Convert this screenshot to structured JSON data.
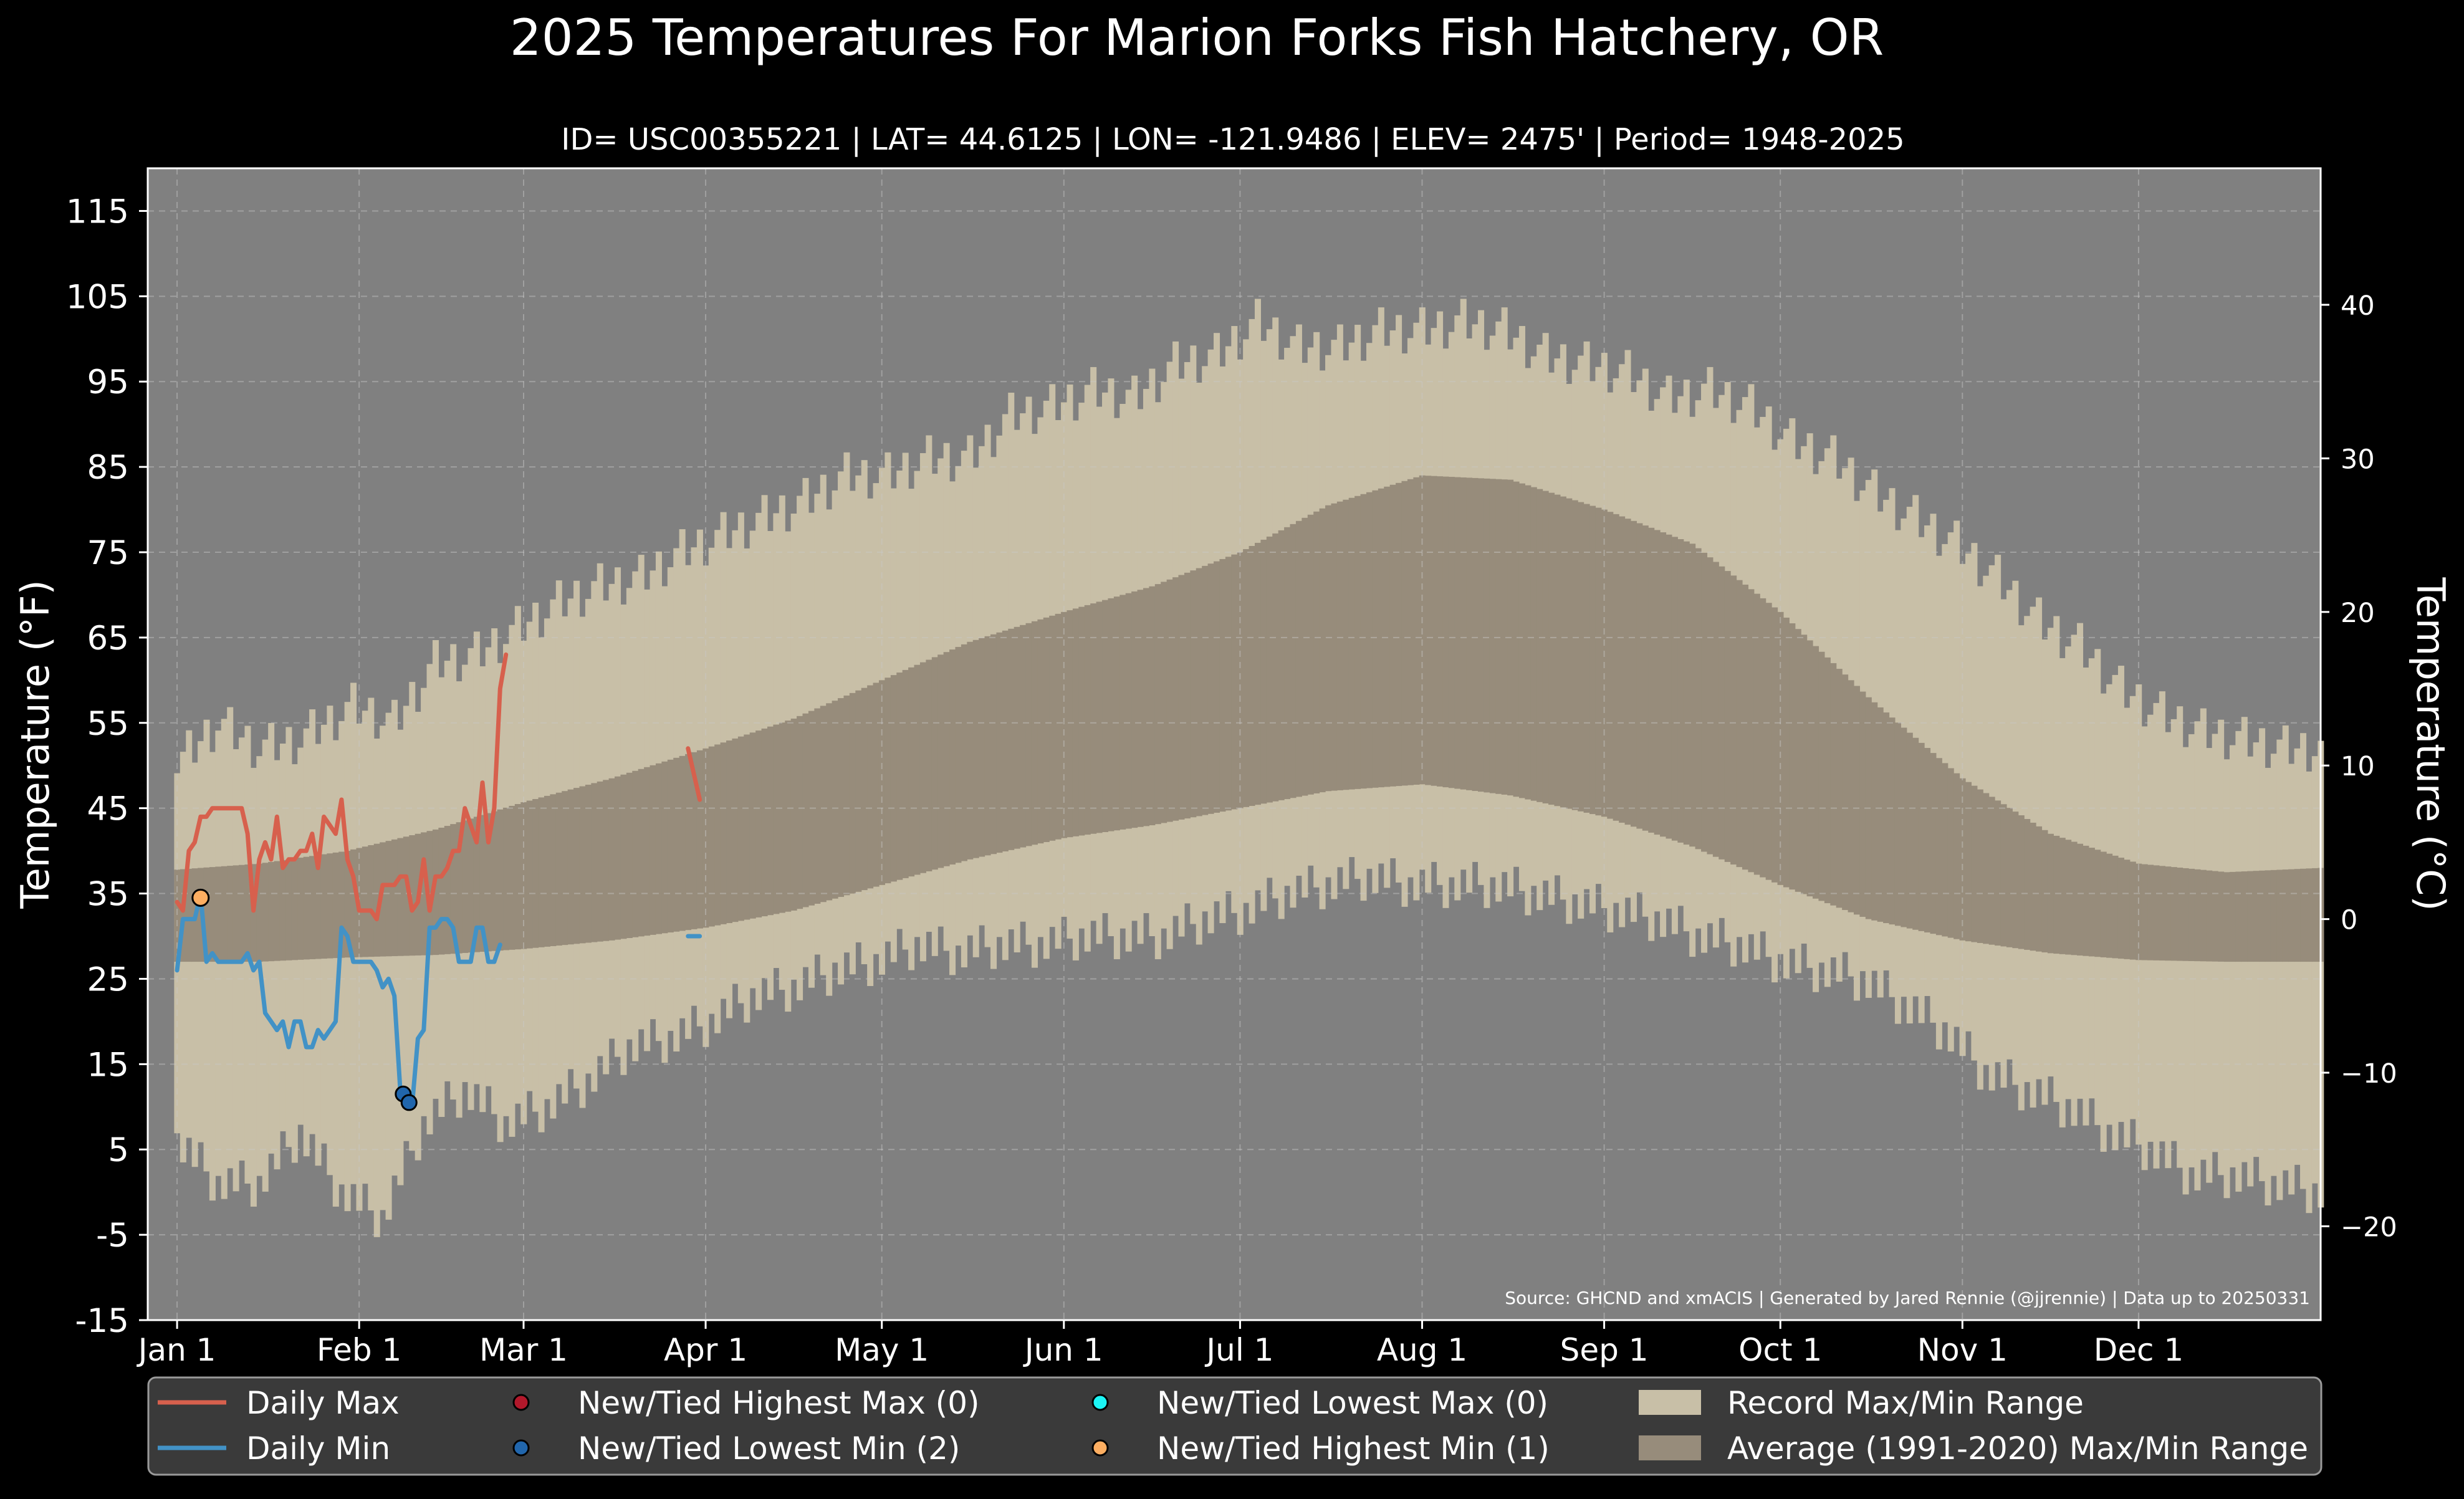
{
  "chart_data": {
    "type": "line",
    "title": "2025 Temperatures For Marion Forks Fish Hatchery, OR",
    "subtitle": "ID= USC00355221 | LAT= 44.6125 | LON= -121.9486 | ELEV= 2475' | Period= 1948-2025",
    "ylabel_left": "Temperature ($^\\circ$F)",
    "ylabel_left_display": "Temperature (°F)",
    "ylabel_right_display": "Temperature (°C)",
    "source_note": "Source: GHCND and xmACIS | Generated by Jared Rennie (@jjrennie) | Data up to 20250331",
    "x_ticks": [
      "Jan 1",
      "Feb 1",
      "Mar 1",
      "Apr 1",
      "May 1",
      "Jun 1",
      "Jul 1",
      "Aug 1",
      "Sep 1",
      "Oct 1",
      "Nov 1",
      "Dec 1"
    ],
    "x_tick_days": [
      1,
      32,
      60,
      91,
      121,
      152,
      182,
      213,
      244,
      274,
      305,
      335
    ],
    "y_ticks_f": [
      115,
      105,
      95,
      85,
      75,
      65,
      55,
      45,
      35,
      25,
      15,
      5,
      -5,
      -15
    ],
    "y_ticks_c": [
      40,
      30,
      20,
      10,
      0,
      -10,
      -20
    ],
    "ylim_f": [
      -15,
      120
    ],
    "xlim_days": [
      -4,
      366
    ],
    "grid": true,
    "colors": {
      "background": "#000000",
      "plot_bg": "#808080",
      "record_range": "#c8bfa7",
      "normal_range": "#978c7b",
      "daily_max": "#d7604d",
      "daily_min": "#4292c6",
      "new_high_max": "#b2182b",
      "new_low_min": "#2166ac",
      "new_low_max": "#1cf5f5",
      "new_high_min": "#fdae61",
      "grid": "#c8c8c8",
      "legend_bg": "#3a3a3a"
    },
    "record_max_points": [
      [
        1,
        50
      ],
      [
        8,
        55
      ],
      [
        15,
        52
      ],
      [
        22,
        53
      ],
      [
        31,
        57
      ],
      [
        38,
        55
      ],
      [
        45,
        62
      ],
      [
        52,
        63
      ],
      [
        59,
        66
      ],
      [
        66,
        69
      ],
      [
        73,
        71
      ],
      [
        80,
        72
      ],
      [
        87,
        75
      ],
      [
        94,
        77
      ],
      [
        101,
        79
      ],
      [
        108,
        81
      ],
      [
        115,
        84
      ],
      [
        122,
        84
      ],
      [
        129,
        86
      ],
      [
        136,
        86
      ],
      [
        143,
        91
      ],
      [
        150,
        92
      ],
      [
        157,
        94
      ],
      [
        164,
        93
      ],
      [
        171,
        97
      ],
      [
        178,
        98
      ],
      [
        185,
        102
      ],
      [
        192,
        99
      ],
      [
        199,
        99
      ],
      [
        206,
        101
      ],
      [
        213,
        101
      ],
      [
        220,
        102
      ],
      [
        227,
        101
      ],
      [
        234,
        98
      ],
      [
        241,
        97
      ],
      [
        248,
        96
      ],
      [
        255,
        93
      ],
      [
        262,
        94
      ],
      [
        269,
        92
      ],
      [
        276,
        88
      ],
      [
        283,
        86
      ],
      [
        290,
        82
      ],
      [
        297,
        79
      ],
      [
        304,
        76
      ],
      [
        311,
        72
      ],
      [
        318,
        67
      ],
      [
        325,
        64
      ],
      [
        332,
        59
      ],
      [
        339,
        56
      ],
      [
        346,
        54
      ],
      [
        353,
        53
      ],
      [
        360,
        52
      ],
      [
        366,
        52
      ]
    ],
    "record_min_points": [
      [
        1,
        6
      ],
      [
        8,
        1
      ],
      [
        15,
        1
      ],
      [
        22,
        7
      ],
      [
        29,
        0
      ],
      [
        36,
        -3
      ],
      [
        43,
        8
      ],
      [
        50,
        12
      ],
      [
        57,
        8
      ],
      [
        64,
        10
      ],
      [
        71,
        13
      ],
      [
        78,
        17
      ],
      [
        85,
        18
      ],
      [
        92,
        20
      ],
      [
        99,
        23
      ],
      [
        106,
        24
      ],
      [
        113,
        26
      ],
      [
        120,
        27
      ],
      [
        127,
        29
      ],
      [
        134,
        28
      ],
      [
        141,
        29
      ],
      [
        148,
        29
      ],
      [
        155,
        30
      ],
      [
        162,
        30
      ],
      [
        169,
        30
      ],
      [
        176,
        32
      ],
      [
        183,
        33
      ],
      [
        190,
        35
      ],
      [
        197,
        36
      ],
      [
        204,
        37
      ],
      [
        211,
        36
      ],
      [
        218,
        36
      ],
      [
        225,
        36
      ],
      [
        232,
        35
      ],
      [
        239,
        34
      ],
      [
        246,
        33
      ],
      [
        253,
        32
      ],
      [
        260,
        30
      ],
      [
        267,
        29
      ],
      [
        274,
        27
      ],
      [
        281,
        26
      ],
      [
        288,
        25
      ],
      [
        295,
        22
      ],
      [
        302,
        19
      ],
      [
        309,
        14
      ],
      [
        316,
        12
      ],
      [
        323,
        10
      ],
      [
        330,
        7
      ],
      [
        337,
        5
      ],
      [
        344,
        2
      ],
      [
        351,
        2
      ],
      [
        358,
        1
      ],
      [
        366,
        0
      ]
    ],
    "normal_max_points": [
      [
        1,
        37.8
      ],
      [
        15,
        38.5
      ],
      [
        30,
        40
      ],
      [
        45,
        42.5
      ],
      [
        60,
        45.7
      ],
      [
        75,
        48.5
      ],
      [
        91,
        52
      ],
      [
        106,
        55.5
      ],
      [
        121,
        60
      ],
      [
        136,
        64.5
      ],
      [
        152,
        68
      ],
      [
        167,
        71
      ],
      [
        182,
        75
      ],
      [
        197,
        80.5
      ],
      [
        213,
        84
      ],
      [
        228,
        83.5
      ],
      [
        244,
        80
      ],
      [
        259,
        76
      ],
      [
        274,
        68
      ],
      [
        289,
        58
      ],
      [
        305,
        48.5
      ],
      [
        320,
        42
      ],
      [
        335,
        38.5
      ],
      [
        350,
        37.5
      ],
      [
        366,
        38
      ]
    ],
    "normal_min_points": [
      [
        1,
        27
      ],
      [
        15,
        27
      ],
      [
        30,
        27.5
      ],
      [
        45,
        27.8
      ],
      [
        60,
        28.5
      ],
      [
        75,
        29.5
      ],
      [
        91,
        31
      ],
      [
        106,
        33
      ],
      [
        121,
        36
      ],
      [
        136,
        39
      ],
      [
        152,
        41.5
      ],
      [
        167,
        43
      ],
      [
        182,
        45
      ],
      [
        197,
        47
      ],
      [
        213,
        47.8
      ],
      [
        228,
        46.5
      ],
      [
        244,
        44
      ],
      [
        259,
        40.5
      ],
      [
        274,
        36
      ],
      [
        289,
        32
      ],
      [
        305,
        29.5
      ],
      [
        320,
        28
      ],
      [
        335,
        27.2
      ],
      [
        350,
        27
      ],
      [
        366,
        27
      ]
    ],
    "series": [
      {
        "name": "Daily Max",
        "segments": [
          [
            [
              1,
              34
            ],
            [
              2,
              33
            ],
            [
              3,
              40
            ],
            [
              4,
              41
            ],
            [
              5,
              44
            ],
            [
              6,
              44
            ],
            [
              7,
              45
            ],
            [
              8,
              45
            ],
            [
              9,
              45
            ],
            [
              10,
              45
            ],
            [
              11,
              45
            ],
            [
              12,
              45
            ],
            [
              13,
              42
            ],
            [
              14,
              33
            ],
            [
              15,
              39
            ],
            [
              16,
              41
            ],
            [
              17,
              39
            ],
            [
              18,
              44
            ],
            [
              19,
              38
            ],
            [
              20,
              39
            ],
            [
              21,
              39
            ],
            [
              22,
              40
            ],
            [
              23,
              40
            ],
            [
              24,
              42
            ],
            [
              25,
              38
            ],
            [
              26,
              44
            ],
            [
              27,
              43
            ],
            [
              28,
              42
            ],
            [
              29,
              46
            ],
            [
              30,
              39
            ],
            [
              31,
              37
            ],
            [
              32,
              33
            ],
            [
              33,
              33
            ],
            [
              34,
              33
            ],
            [
              35,
              32
            ],
            [
              36,
              36
            ],
            [
              37,
              36
            ],
            [
              38,
              36
            ],
            [
              39,
              37
            ],
            [
              40,
              37
            ],
            [
              41,
              33
            ],
            [
              42,
              34
            ],
            [
              43,
              39
            ],
            [
              44,
              33
            ],
            [
              45,
              37
            ],
            [
              46,
              37
            ],
            [
              47,
              38
            ],
            [
              48,
              40
            ],
            [
              49,
              40
            ],
            [
              50,
              45
            ],
            [
              51,
              43
            ],
            [
              52,
              41
            ],
            [
              53,
              48
            ],
            [
              54,
              41
            ],
            [
              55,
              45
            ],
            [
              56,
              59
            ],
            [
              57,
              63
            ]
          ],
          [
            [
              88,
              52
            ],
            [
              89,
              49
            ],
            [
              90,
              46
            ]
          ]
        ]
      },
      {
        "name": "Daily Min",
        "segments": [
          [
            [
              1,
              26
            ],
            [
              2,
              32
            ],
            [
              3,
              32
            ],
            [
              4,
              32
            ],
            [
              5,
              35
            ],
            [
              6,
              27
            ],
            [
              7,
              28
            ],
            [
              8,
              27
            ],
            [
              9,
              27
            ],
            [
              10,
              27
            ],
            [
              11,
              27
            ],
            [
              12,
              27
            ],
            [
              13,
              28
            ],
            [
              14,
              26
            ],
            [
              15,
              27
            ],
            [
              16,
              21
            ],
            [
              17,
              20
            ],
            [
              18,
              19
            ],
            [
              19,
              20
            ],
            [
              20,
              17
            ],
            [
              21,
              20
            ],
            [
              22,
              20
            ],
            [
              23,
              17
            ],
            [
              24,
              17
            ],
            [
              25,
              19
            ],
            [
              26,
              18
            ],
            [
              27,
              19
            ],
            [
              28,
              20
            ],
            [
              29,
              31
            ],
            [
              30,
              30
            ],
            [
              31,
              27
            ],
            [
              32,
              27
            ],
            [
              33,
              27
            ],
            [
              34,
              27
            ],
            [
              35,
              26
            ],
            [
              36,
              24
            ],
            [
              37,
              25
            ],
            [
              38,
              23
            ],
            [
              39,
              12
            ],
            [
              40,
              11
            ],
            [
              41,
              10
            ],
            [
              42,
              18
            ],
            [
              43,
              19
            ],
            [
              44,
              31
            ],
            [
              45,
              31
            ],
            [
              46,
              32
            ],
            [
              47,
              32
            ],
            [
              48,
              31
            ],
            [
              49,
              27
            ],
            [
              50,
              27
            ],
            [
              51,
              27
            ],
            [
              52,
              31
            ],
            [
              53,
              31
            ],
            [
              54,
              27
            ],
            [
              55,
              27
            ],
            [
              56,
              29
            ]
          ],
          [
            [
              88,
              30
            ],
            [
              89,
              30
            ],
            [
              90,
              30
            ]
          ]
        ]
      }
    ],
    "new_lowest_min_points": [
      [
        39.5,
        11.5
      ],
      [
        40.5,
        10.5
      ]
    ],
    "new_highest_min_points": [
      [
        5,
        34.5
      ]
    ],
    "legend": [
      {
        "label": "Daily Max",
        "kind": "line",
        "color_key": "daily_max"
      },
      {
        "label": "Daily Min",
        "kind": "line",
        "color_key": "daily_min"
      },
      {
        "label": "New/Tied Highest Max (0)",
        "kind": "dot",
        "color_key": "new_high_max"
      },
      {
        "label": "New/Tied Lowest Min (2)",
        "kind": "dot",
        "color_key": "new_low_min"
      },
      {
        "label": "New/Tied Lowest Max (0)",
        "kind": "dot",
        "color_key": "new_low_max"
      },
      {
        "label": "New/Tied Highest Min (1)",
        "kind": "dot",
        "color_key": "new_high_min"
      },
      {
        "label": "Record Max/Min Range",
        "kind": "patch",
        "color_key": "record_range"
      },
      {
        "label": "Average (1991-2020) Max/Min Range",
        "kind": "patch",
        "color_key": "normal_range"
      }
    ]
  }
}
